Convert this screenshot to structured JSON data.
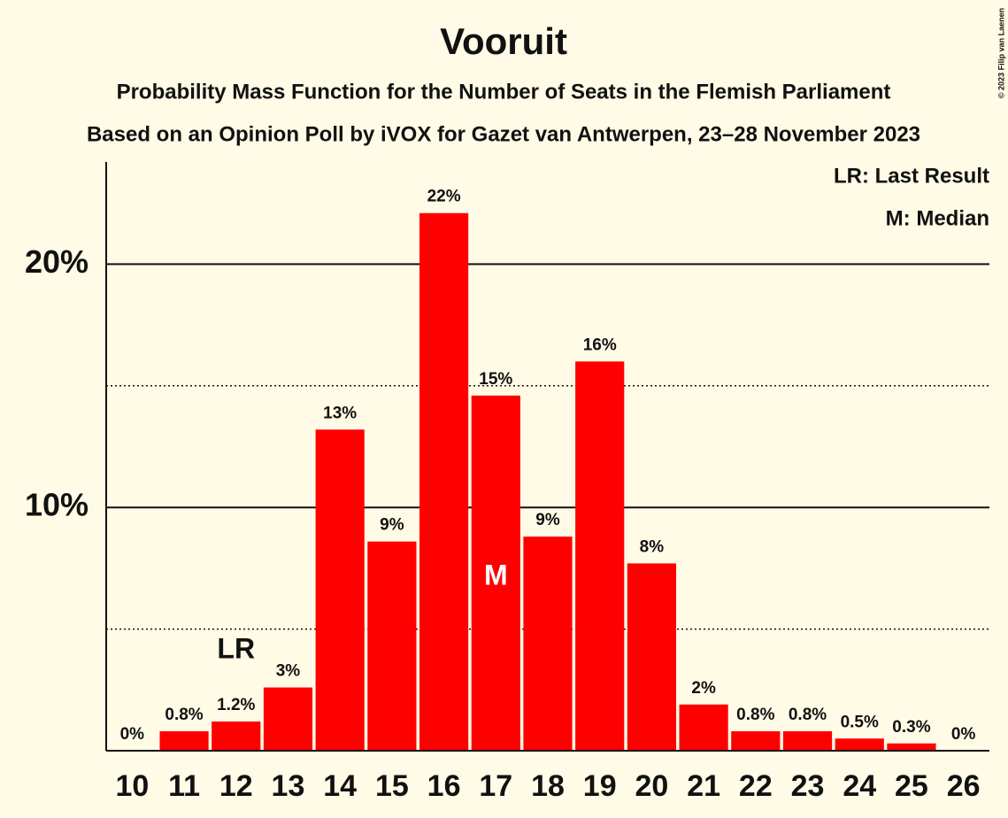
{
  "chart_data": {
    "type": "bar",
    "title": "Vooruit",
    "subtitle": "Probability Mass Function for the Number of Seats in the Flemish Parliament",
    "subtitle2": "Based on an Opinion Poll by iVOX for Gazet van Antwerpen, 23–28 November 2023",
    "categories": [
      "10",
      "11",
      "12",
      "13",
      "14",
      "15",
      "16",
      "17",
      "18",
      "19",
      "20",
      "21",
      "22",
      "23",
      "24",
      "25",
      "26"
    ],
    "values": [
      0,
      0.8,
      1.2,
      2.6,
      13.2,
      8.6,
      22.1,
      14.6,
      8.8,
      16.0,
      7.7,
      1.9,
      0.8,
      0.8,
      0.5,
      0.3,
      0
    ],
    "value_labels": [
      "0%",
      "0.8%",
      "1.2%",
      "3%",
      "13%",
      "9%",
      "22%",
      "15%",
      "9%",
      "16%",
      "8%",
      "2%",
      "0.8%",
      "0.8%",
      "0.5%",
      "0.3%",
      "0%"
    ],
    "color": "#ff0000",
    "ylim": [
      0,
      24.2
    ],
    "yticks": [
      {
        "value": 10,
        "label": "10%"
      },
      {
        "value": 20,
        "label": "20%"
      }
    ],
    "minor_yticks": [
      5,
      15
    ],
    "grid": true,
    "annotations": [
      {
        "text": "LR",
        "x": "12"
      },
      {
        "text": "M",
        "x": "17"
      }
    ],
    "legend": [
      "LR: Last Result",
      "M: Median"
    ],
    "legend_position": "upper right",
    "copyright": "© 2023 Filip van Laenen"
  }
}
